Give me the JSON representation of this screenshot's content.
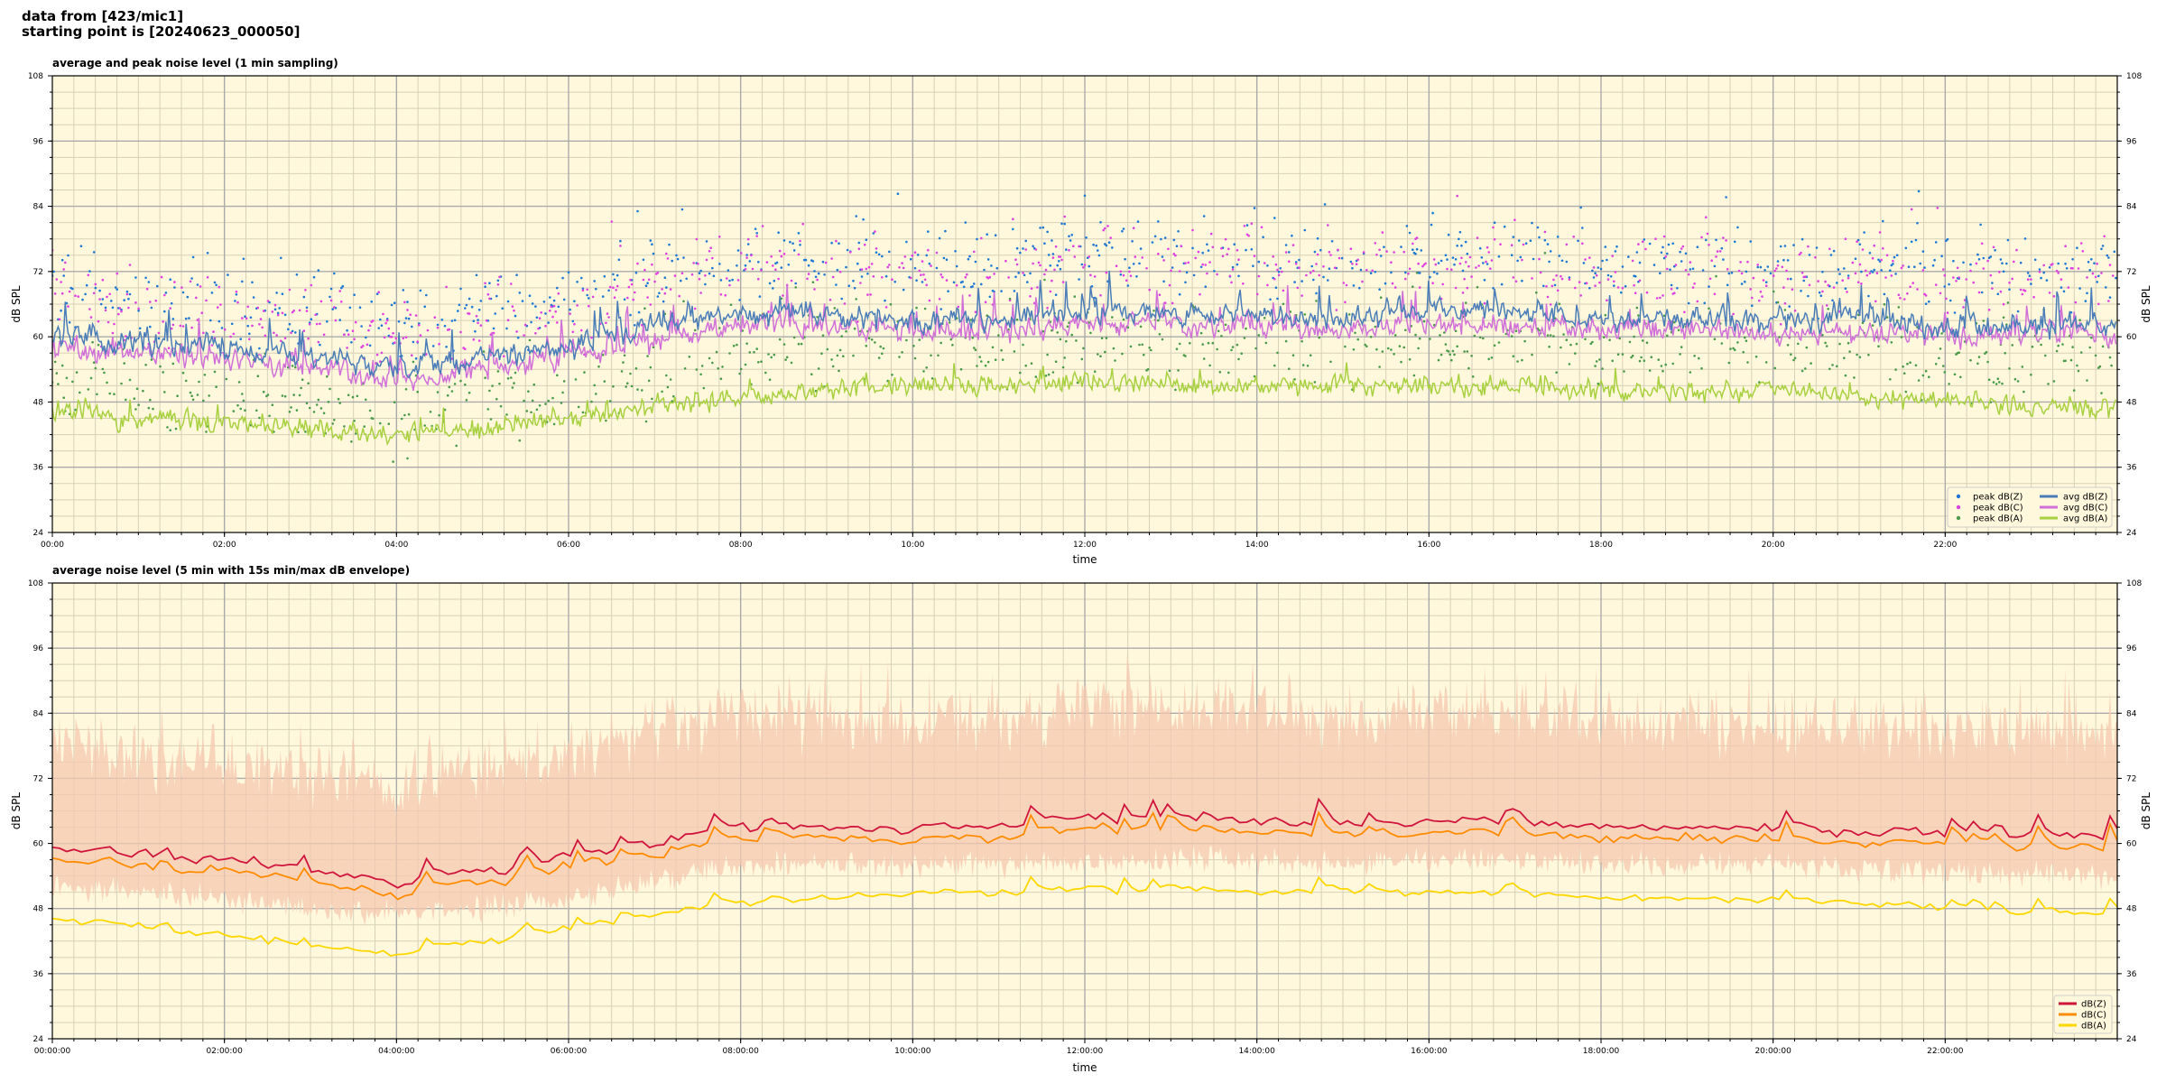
{
  "header": {
    "line1": "data from [423/mic1]",
    "line2": "starting point is [20240623_000050]"
  },
  "colors": {
    "plot_bg": "#fff8dc",
    "grid_major": "#aaaaaa",
    "grid_minor": "#d8d0b8",
    "peak_z": "#1f77d4",
    "peak_c": "#e040e0",
    "peak_a": "#4a9a4a",
    "avg_z": "#4a7db8",
    "avg_c": "#d070d8",
    "avg_a": "#a8d040",
    "env_fill": "#f6c8b0",
    "line_z": "#d0143c",
    "line_c": "#ff8c00",
    "line_a": "#ffd700"
  },
  "chart_data": [
    {
      "type": "line",
      "title": "average and peak noise level (1 min sampling)",
      "xlabel": "time",
      "ylabel": "dB SPL",
      "ylim": [
        24,
        108
      ],
      "yticks": [
        24,
        36,
        48,
        60,
        72,
        84,
        96,
        108
      ],
      "xlim_hours": [
        0,
        24
      ],
      "xtick_labels": [
        "00:00",
        "02:00",
        "04:00",
        "06:00",
        "08:00",
        "10:00",
        "12:00",
        "14:00",
        "16:00",
        "18:00",
        "20:00",
        "22:00"
      ],
      "grid": true,
      "legend_position": "bottom-right",
      "series": [
        {
          "name": "peak dB(Z)",
          "kind": "scatter",
          "color_key": "peak_z",
          "hourly_values": [
            69,
            67,
            66,
            64,
            62,
            65,
            66,
            72,
            75,
            74,
            73,
            72,
            76,
            75,
            74,
            74,
            76,
            75,
            73,
            73,
            73,
            73,
            72,
            72
          ]
        },
        {
          "name": "peak dB(C)",
          "kind": "scatter",
          "color_key": "peak_c",
          "hourly_values": [
            67,
            65,
            64,
            62,
            60,
            63,
            64,
            70,
            73,
            72,
            71,
            70,
            74,
            73,
            72,
            72,
            74,
            73,
            71,
            71,
            71,
            71,
            70,
            70
          ]
        },
        {
          "name": "peak dB(A)",
          "kind": "scatter",
          "color_key": "peak_a",
          "hourly_values": [
            52,
            50,
            49,
            47,
            46,
            48,
            50,
            54,
            57,
            58,
            58,
            58,
            60,
            59,
            59,
            58,
            59,
            59,
            58,
            58,
            58,
            57,
            56,
            55
          ]
        },
        {
          "name": "avg dB(Z)",
          "kind": "line",
          "color_key": "avg_z",
          "hourly_values": [
            60,
            59,
            58,
            56,
            54,
            56,
            58,
            62,
            64,
            64,
            63,
            63,
            65,
            64,
            64,
            63,
            65,
            64,
            63,
            63,
            63,
            63,
            62,
            62
          ]
        },
        {
          "name": "avg dB(C)",
          "kind": "line",
          "color_key": "avg_c",
          "hourly_values": [
            58,
            57,
            56,
            54,
            52,
            54,
            56,
            59,
            62,
            62,
            61,
            61,
            63,
            62,
            62,
            61,
            62,
            62,
            61,
            61,
            61,
            61,
            60,
            60
          ]
        },
        {
          "name": "avg dB(A)",
          "kind": "line",
          "color_key": "avg_a",
          "hourly_values": [
            46,
            45,
            44,
            43,
            42,
            43,
            45,
            47,
            49,
            50,
            51,
            51,
            52,
            51,
            51,
            51,
            51,
            51,
            50,
            50,
            50,
            49,
            48,
            47
          ]
        }
      ]
    },
    {
      "type": "line",
      "title": "average noise level (5 min with 15s min/max dB envelope)",
      "xlabel": "time",
      "ylabel": "dB SPL",
      "ylim": [
        24,
        108
      ],
      "yticks": [
        24,
        36,
        48,
        60,
        72,
        84,
        96,
        108
      ],
      "xlim_hours": [
        0,
        24
      ],
      "xtick_labels": [
        "00:00:00",
        "02:00:00",
        "04:00:00",
        "06:00:00",
        "08:00:00",
        "10:00:00",
        "12:00:00",
        "14:00:00",
        "16:00:00",
        "18:00:00",
        "20:00:00",
        "22:00:00"
      ],
      "grid": true,
      "legend_position": "bottom-right",
      "envelope": {
        "color_key": "env_fill",
        "hourly_min": [
          52,
          51,
          50,
          48,
          47,
          48,
          50,
          53,
          56,
          56,
          56,
          56,
          57,
          57,
          57,
          56,
          57,
          57,
          56,
          56,
          56,
          55,
          55,
          54
        ],
        "hourly_max": [
          78,
          76,
          75,
          73,
          71,
          74,
          76,
          80,
          84,
          83,
          82,
          82,
          86,
          84,
          84,
          83,
          85,
          84,
          83,
          82,
          82,
          82,
          81,
          80
        ]
      },
      "series": [
        {
          "name": "dB(Z)",
          "color_key": "line_z",
          "hourly_values": [
            59,
            58,
            57,
            55,
            53,
            55,
            57,
            60,
            63,
            63,
            63,
            63,
            65,
            64,
            64,
            63,
            64,
            64,
            63,
            63,
            63,
            62,
            62,
            61
          ]
        },
        {
          "name": "dB(C)",
          "color_key": "line_c",
          "hourly_values": [
            57,
            56,
            55,
            53,
            51,
            53,
            55,
            58,
            61,
            61,
            61,
            61,
            63,
            62,
            62,
            61,
            62,
            62,
            61,
            61,
            61,
            60,
            60,
            59
          ]
        },
        {
          "name": "dB(A)",
          "color_key": "line_a",
          "hourly_values": [
            46,
            45,
            43,
            41,
            40,
            42,
            44,
            47,
            49,
            50,
            51,
            51,
            52,
            51,
            51,
            51,
            51,
            51,
            50,
            50,
            50,
            49,
            48,
            47
          ]
        }
      ]
    }
  ]
}
